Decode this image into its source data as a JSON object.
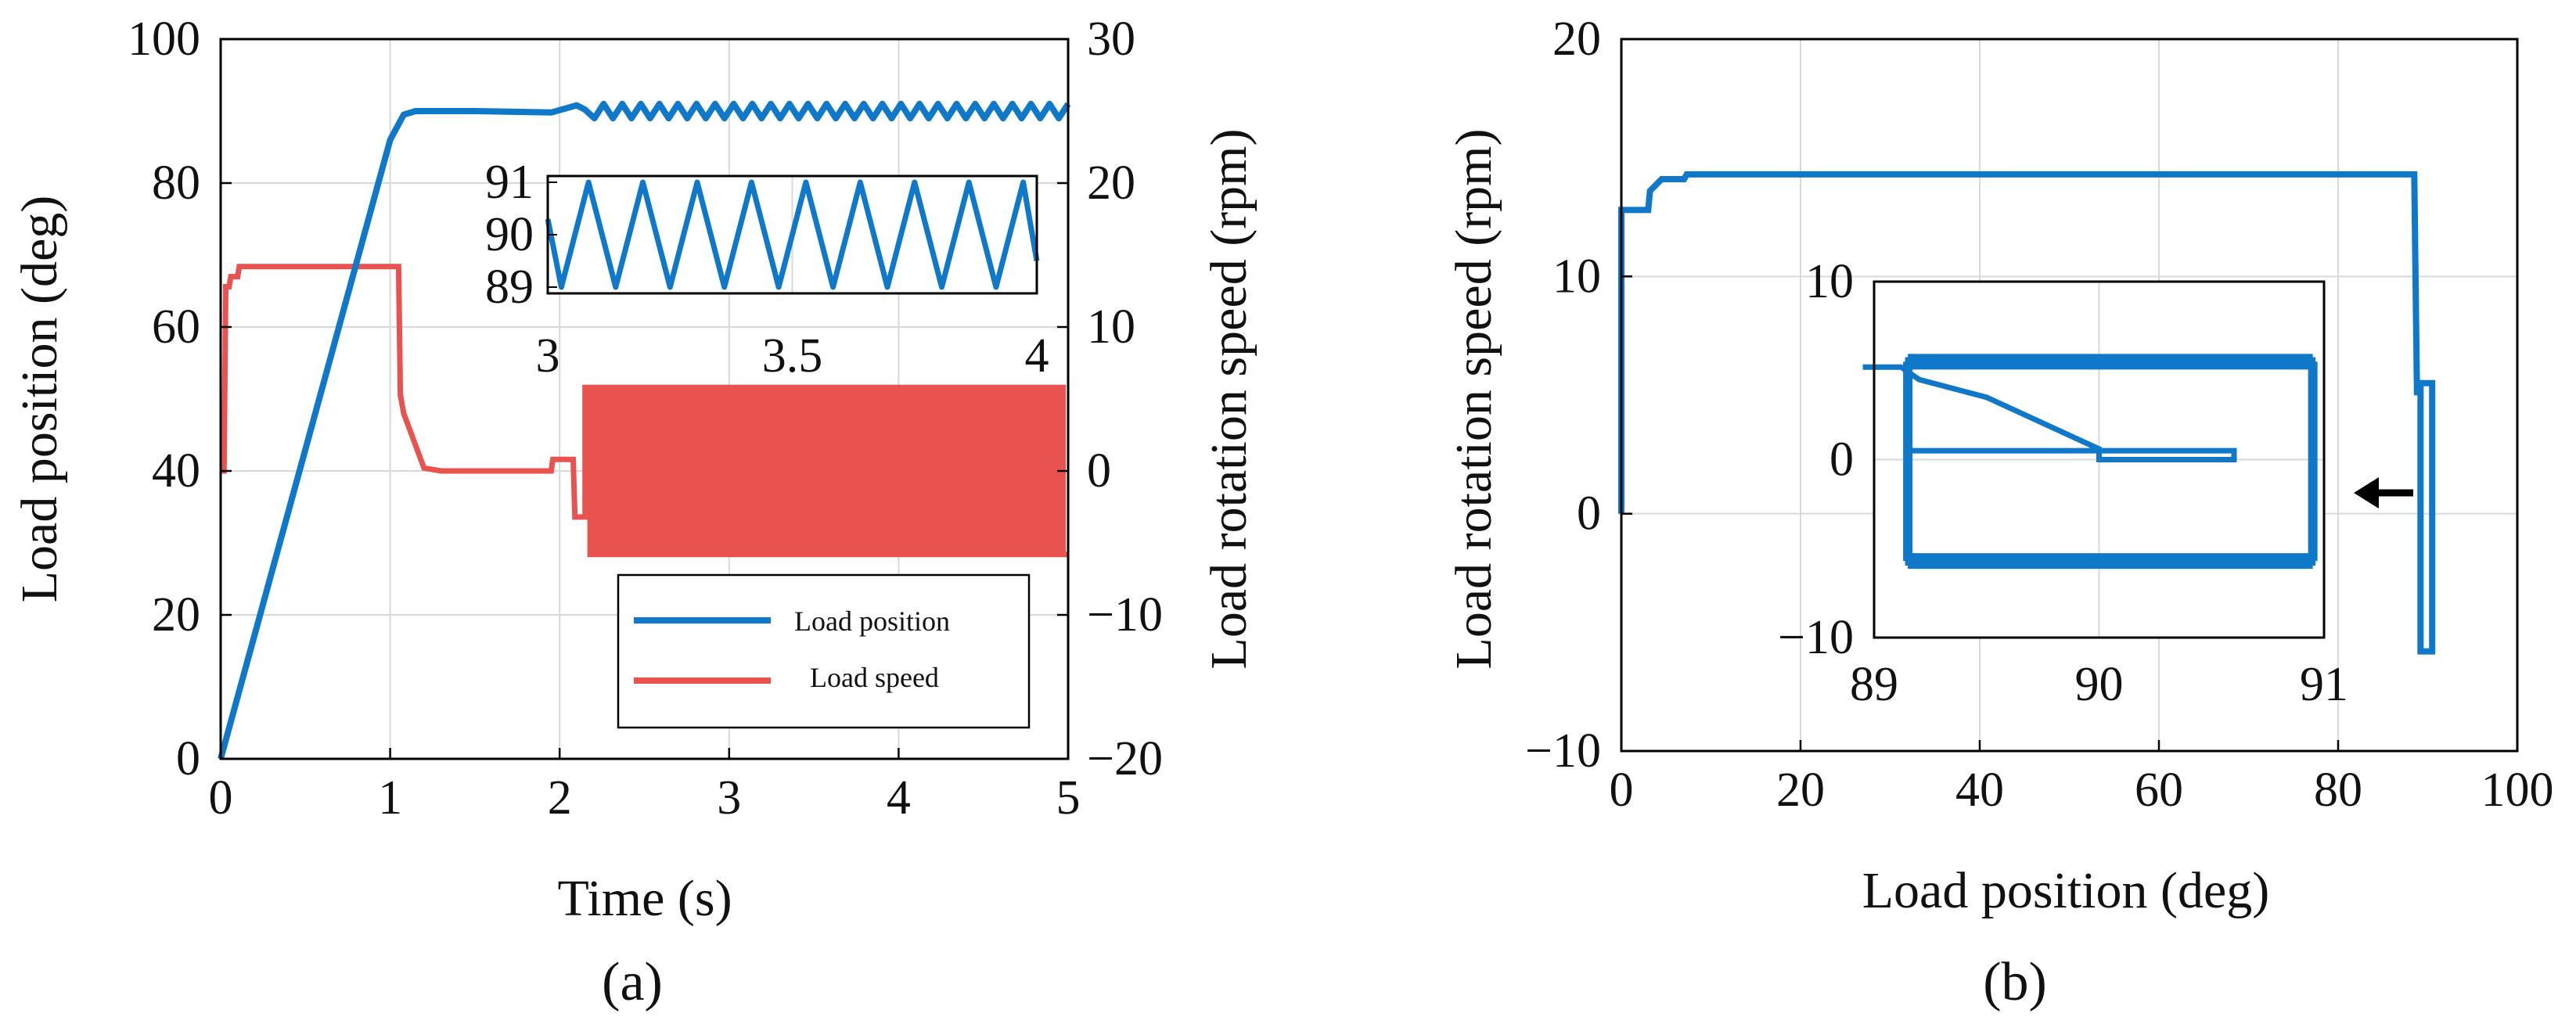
{
  "figure_labels": {
    "a": "(a)",
    "b": "(b)"
  },
  "colors": {
    "position": "#0f78c8",
    "speed": "#e8534f",
    "grid": "#d9d9d9",
    "axis": "#000000"
  },
  "chart_data": [
    {
      "id": "a",
      "type": "line",
      "xlabel": "Time (s)",
      "ylabel_left": "Load position (deg)",
      "ylabel_right": "Load rotation speed (rpm)",
      "xlim": [
        0,
        5
      ],
      "ylim_left": [
        0,
        100
      ],
      "ylim_right": [
        -20,
        30
      ],
      "xticks": [
        "0",
        "1",
        "2",
        "3",
        "4",
        "5"
      ],
      "yticks_left": [
        "0",
        "20",
        "40",
        "60",
        "80",
        "100"
      ],
      "yticks_right": [
        "−20",
        "−10",
        "0",
        "10",
        "20",
        "30"
      ],
      "grid": true,
      "legend": {
        "placement": "lower-right",
        "entries": [
          "Load position",
          "Load speed"
        ]
      },
      "series": [
        {
          "name": "Load position",
          "axis": "left",
          "x": [
            0,
            0.5,
            1.0,
            1.08,
            1.15,
            1.5,
            1.95,
            2.1,
            2.15
          ],
          "y": [
            0,
            43,
            86,
            89.5,
            90,
            90,
            89.8,
            90.8,
            90.2
          ],
          "oscillation": {
            "start": 2.15,
            "end": 5.0,
            "center": 90.0,
            "amplitude": 1.0,
            "cycles": 26
          }
        },
        {
          "name": "Load speed",
          "axis": "right",
          "x": [
            0,
            0.02,
            0.03,
            0.05,
            0.06,
            0.1,
            0.11,
            1.05,
            1.06,
            1.08,
            1.2,
            1.3,
            1.95,
            1.96,
            2.08,
            2.09,
            2.15
          ],
          "y": [
            0,
            0,
            12.8,
            12.8,
            13.5,
            13.5,
            14.2,
            14.2,
            5.3,
            4.0,
            0.2,
            0,
            0,
            0.8,
            0.8,
            -3.2,
            -3.2
          ],
          "oscillation": {
            "start": 2.15,
            "end": 5.0,
            "high": 5.8,
            "low": -5.8,
            "cycles": 48
          }
        }
      ],
      "inset": {
        "xlim": [
          3,
          4
        ],
        "ylim": [
          89,
          91
        ],
        "xticks": [
          "3",
          "3.5",
          "4"
        ],
        "yticks": [
          "89",
          "90",
          "91"
        ],
        "series": "Load position",
        "oscillation": {
          "center": 90.0,
          "amplitude": 1.0,
          "cycles": 9
        }
      }
    },
    {
      "id": "b",
      "type": "line",
      "xlabel": "Load position (deg)",
      "ylabel": "Load rotation speed (rpm)",
      "xlim": [
        0,
        100
      ],
      "ylim": [
        -10,
        20
      ],
      "xticks": [
        "0",
        "20",
        "40",
        "60",
        "80",
        "100"
      ],
      "yticks": [
        "−10",
        "0",
        "10",
        "20"
      ],
      "grid": true,
      "series": [
        {
          "x": [
            0,
            0,
            0.05,
            0.3,
            3.0,
            3.2,
            4.5,
            7.0,
            7.3,
            80,
            88.5,
            88.8,
            89.2,
            89.2,
            90.5,
            90.5,
            89.2,
            89.2,
            90.5,
            90.5,
            89.2
          ],
          "y": [
            0,
            12.8,
            12.8,
            12.8,
            12.8,
            13.6,
            14.1,
            14.1,
            14.3,
            14.3,
            14.3,
            5.0,
            5.5,
            -5.8,
            -5.8,
            5.5,
            5.5,
            -5.8,
            -5.8,
            5.5,
            5.5
          ]
        }
      ],
      "inset": {
        "xlim": [
          89,
          91
        ],
        "ylim": [
          -10,
          10
        ],
        "xticks": [
          "89",
          "90",
          "91"
        ],
        "yticks": [
          "−10",
          "0",
          "10"
        ],
        "series": {
          "x": [
            88.95,
            89.12,
            89.2,
            89.5,
            90.0,
            90.0,
            90.6,
            90.6,
            89.15,
            89.15,
            90.95,
            90.95,
            89.15,
            89.15,
            90.95,
            90.95,
            89.15
          ],
          "y": [
            5.2,
            5.2,
            4.5,
            3.5,
            0.6,
            0.0,
            0.0,
            0.5,
            0.5,
            -5.8,
            -5.8,
            5.6,
            5.6,
            -5.8,
            -5.8,
            5.6,
            5.6
          ]
        },
        "arrow": "← marks zoomed region near 90 deg"
      }
    }
  ]
}
